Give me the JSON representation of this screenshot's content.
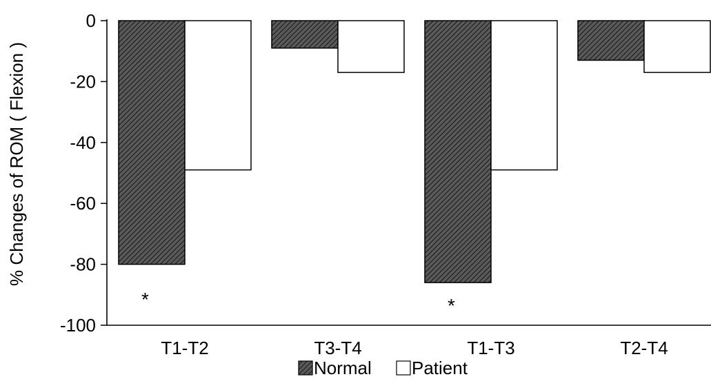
{
  "chart_data": {
    "type": "bar",
    "categories": [
      "T1-T2",
      "T3-T4",
      "T1-T3",
      "T2-T4"
    ],
    "series": [
      {
        "name": "Normal",
        "values": [
          -80,
          -9,
          -86,
          -13
        ],
        "pattern": "hatched-dark"
      },
      {
        "name": "Patient",
        "values": [
          -49,
          -17,
          -49,
          -17
        ],
        "pattern": "white"
      }
    ],
    "ylabel": "% Changes of ROM ( Flexion )",
    "ylim": [
      -100,
      0
    ],
    "yticks": [
      0,
      -20,
      -40,
      -60,
      -80,
      -100
    ],
    "yticklabels": [
      "0",
      "-20",
      "-40",
      "-60",
      "-80",
      "-100"
    ],
    "annotations": [
      {
        "text": "*",
        "category": "T1-T2",
        "series": "Normal",
        "y": -91
      },
      {
        "text": "*",
        "category": "T1-T3",
        "series": "Normal",
        "y": -93
      }
    ],
    "legend": {
      "placement": "bottom-center",
      "entries": [
        "Normal",
        "Patient"
      ]
    },
    "grid": false,
    "colors": {
      "normal_fill": "#3a3a3a",
      "patient_fill": "#ffffff",
      "stroke": "#000000"
    }
  }
}
